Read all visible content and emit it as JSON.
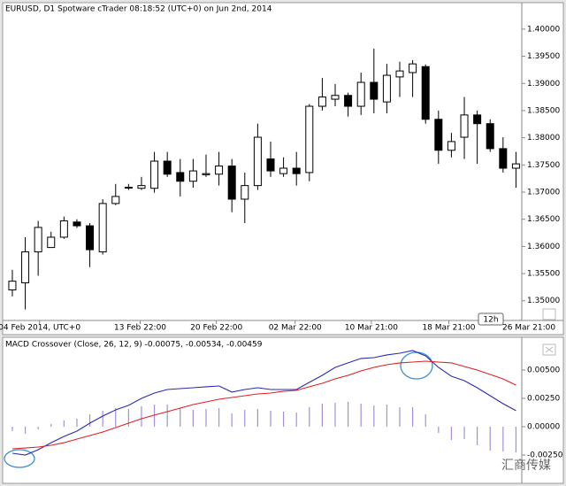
{
  "chart_data": [
    {
      "type": "candlestick",
      "title": "EURUSD, D1 Spotware cTrader 08:18:52 (UTC+0) on Jun 2nd, 2014",
      "open": [
        1.352,
        1.3533,
        1.359,
        1.3598,
        1.3617,
        1.3645,
        1.3638,
        1.359,
        1.3679,
        1.3708,
        1.3707,
        1.3707,
        1.3757,
        1.3736,
        1.372,
        1.3732,
        1.3733,
        1.3748,
        1.3687,
        1.3712,
        1.3761,
        1.3734,
        1.3744,
        1.3736,
        1.3858,
        1.3871,
        1.3878,
        1.3858,
        1.3902,
        1.3866,
        1.3912,
        1.392,
        1.3931,
        1.3834,
        1.3777,
        1.3801,
        1.3842,
        1.3826,
        1.378,
        1.3744
      ],
      "high": [
        1.3557,
        1.3617,
        1.3647,
        1.3627,
        1.3655,
        1.365,
        1.3643,
        1.3687,
        1.3715,
        1.3715,
        1.3728,
        1.3774,
        1.3774,
        1.3761,
        1.3761,
        1.3769,
        1.3774,
        1.3761,
        1.3736,
        1.3826,
        1.3793,
        1.3764,
        1.3774,
        1.3862,
        1.391,
        1.3899,
        1.3883,
        1.392,
        1.3964,
        1.3936,
        1.394,
        1.3943,
        1.3935,
        1.385,
        1.3809,
        1.3875,
        1.385,
        1.3834,
        1.3801,
        1.3774
      ],
      "low": [
        1.3508,
        1.3484,
        1.3546,
        1.3598,
        1.3614,
        1.3634,
        1.3562,
        1.3585,
        1.3676,
        1.3704,
        1.3704,
        1.3699,
        1.3728,
        1.3692,
        1.3708,
        1.3728,
        1.3712,
        1.3663,
        1.3643,
        1.3704,
        1.3728,
        1.3728,
        1.3712,
        1.372,
        1.385,
        1.3858,
        1.3839,
        1.3842,
        1.3845,
        1.3845,
        1.3875,
        1.3875,
        1.3826,
        1.3752,
        1.3764,
        1.3761,
        1.3752,
        1.3774,
        1.3736,
        1.3708
      ],
      "close": [
        1.3536,
        1.359,
        1.3635,
        1.3617,
        1.3647,
        1.3638,
        1.3594,
        1.3679,
        1.3692,
        1.3709,
        1.3712,
        1.3757,
        1.3733,
        1.372,
        1.3739,
        1.3734,
        1.3748,
        1.3687,
        1.3712,
        1.3801,
        1.3739,
        1.3744,
        1.3734,
        1.3858,
        1.3875,
        1.3878,
        1.3858,
        1.3902,
        1.3871,
        1.3915,
        1.3923,
        1.3936,
        1.3834,
        1.3777,
        1.3793,
        1.3842,
        1.3826,
        1.378,
        1.3744,
        1.3752
      ],
      "up_color": "#ffffff",
      "down_color": "#000000",
      "xlim": [
        -0.75,
        39.45
      ],
      "xticks": [
        {
          "value": 2.1,
          "label": "04 Feb 2014, UTC+0"
        },
        {
          "value": 9.9,
          "label": "13 Feb 22:00"
        },
        {
          "value": 15.8,
          "label": "20 Feb 22:00"
        },
        {
          "value": 21.9,
          "label": "02 Mar 22:00"
        },
        {
          "value": 27.8,
          "label": "10 Mar 21:00"
        },
        {
          "value": 33.8,
          "label": "18 Mar 21:00"
        },
        {
          "value": 40,
          "label": "26 Mar 21:00"
        }
      ],
      "ylim": [
        1.3467,
        1.4021
      ],
      "yticks": [
        {
          "value": 1.35,
          "label": "1.35000"
        },
        {
          "value": 1.355,
          "label": "1.35500"
        },
        {
          "value": 1.36,
          "label": "1.36000"
        },
        {
          "value": 1.365,
          "label": "1.36500"
        },
        {
          "value": 1.37,
          "label": "1.37000"
        },
        {
          "value": 1.375,
          "label": "1.37500"
        },
        {
          "value": 1.38,
          "label": "1.38000"
        },
        {
          "value": 1.385,
          "label": "1.38500"
        },
        {
          "value": 1.39,
          "label": "1.39000"
        },
        {
          "value": 1.395,
          "label": "1.39500"
        },
        {
          "value": 1.4,
          "label": "1.40000"
        }
      ],
      "timeframe": "12h"
    },
    {
      "type": "macd",
      "title": "MACD Crossover (Close, 26, 12, 9) -0.00075, -0.00534, -0.00459",
      "series": [
        {
          "color": "#2a2ab8",
          "values": [
            -0.00234,
            -0.0025,
            -0.00203,
            -0.00141,
            -0.00086,
            -0.00039,
            0.00031,
            0.00094,
            0.00148,
            0.00188,
            0.0025,
            0.00297,
            0.00328,
            0.00336,
            0.00344,
            0.00352,
            0.00359,
            0.00305,
            0.00328,
            0.00344,
            0.00328,
            0.00328,
            0.00328,
            0.00391,
            0.00453,
            0.00523,
            0.00563,
            0.00602,
            0.00609,
            0.00633,
            0.00648,
            0.00672,
            0.00625,
            0.00523,
            0.00445,
            0.00406,
            0.00344,
            0.00273,
            0.00203,
            0.00141
          ]
        },
        {
          "color": "#e02020",
          "values": [
            -0.00195,
            -0.00188,
            -0.0018,
            -0.00164,
            -0.00141,
            -0.00109,
            -0.00078,
            -0.00047,
            -8e-05,
            0.00031,
            0.0007,
            0.00102,
            0.00133,
            0.00164,
            0.00195,
            0.00219,
            0.00242,
            0.00258,
            0.00273,
            0.00289,
            0.00297,
            0.00313,
            0.0032,
            0.00352,
            0.00383,
            0.00422,
            0.00453,
            0.00492,
            0.00523,
            0.00547,
            0.00563,
            0.0057,
            0.00578,
            0.0057,
            0.00563,
            0.00531,
            0.005,
            0.00461,
            0.00422,
            0.00367
          ]
        }
      ],
      "histogram": {
        "color": "#a58fd8",
        "values": [
          -0.00039,
          -0.00062,
          -0.00023,
          0.00023,
          0.00055,
          0.0007,
          0.00109,
          0.00141,
          0.00164,
          0.00156,
          0.0018,
          0.00195,
          0.00195,
          0.00164,
          0.00148,
          0.00156,
          0.00164,
          0.00117,
          0.00148,
          0.00156,
          0.00141,
          0.00133,
          0.00125,
          0.00172,
          0.00203,
          0.00211,
          0.00219,
          0.00203,
          0.00188,
          0.00195,
          0.00172,
          0.00172,
          0.00109,
          -0.00055,
          -0.00117,
          -0.00109,
          -0.00164,
          -0.00211,
          -0.00219,
          -0.00227
        ]
      },
      "xlim": [
        -0.75,
        39.45
      ],
      "ylim": [
        -0.00453,
        0.00781
      ],
      "yticks": [
        {
          "value": 0.005,
          "label": "0.00500"
        },
        {
          "value": 0.0025,
          "label": "0.00250"
        },
        {
          "value": 0,
          "label": "0.00000"
        },
        {
          "value": -0.0025,
          "label": "-0.00250"
        }
      ],
      "watermark": "汇商传媒"
    }
  ]
}
